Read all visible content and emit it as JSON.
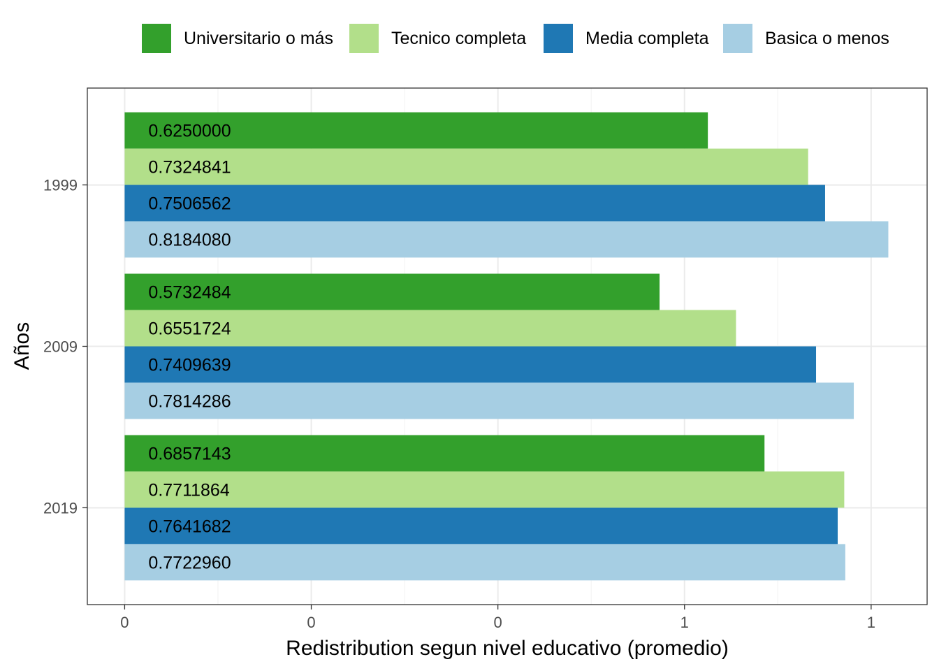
{
  "chart_data": {
    "type": "bar",
    "orientation": "horizontal",
    "title": "",
    "xlabel": "Redistribution segun nivel educativo (promedio)",
    "ylabel": "Años",
    "categories": [
      "1999",
      "2009",
      "2019"
    ],
    "x_tick_labels": [
      "0",
      "0",
      "0",
      "1",
      "1"
    ],
    "xlim": [
      -0.1,
      2.15
    ],
    "legend_position": "top",
    "grid": true,
    "series": [
      {
        "name": "Universitario o más",
        "color": "#33a02c",
        "values": [
          1.5625,
          1.43312,
          1.714286
        ],
        "labels": [
          "0.6250000",
          "0.5732484",
          "0.6857143"
        ]
      },
      {
        "name": "Tecnico completa",
        "color": "#b2df8a",
        "values": [
          1.83121,
          1.637931,
          1.927966
        ],
        "labels": [
          "0.7324841",
          "0.6551724",
          "0.7711864"
        ]
      },
      {
        "name": "Media completa",
        "color": "#1f78b4",
        "values": [
          1.876641,
          1.85241,
          1.910421
        ],
        "labels": [
          "0.7506562",
          "0.7409639",
          "0.7641682"
        ]
      },
      {
        "name": "Basica o menos",
        "color": "#a6cee3",
        "values": [
          2.04602,
          1.953572,
          1.93074
        ],
        "labels": [
          "0.8184080",
          "0.7814286",
          "0.7722960"
        ]
      }
    ]
  }
}
